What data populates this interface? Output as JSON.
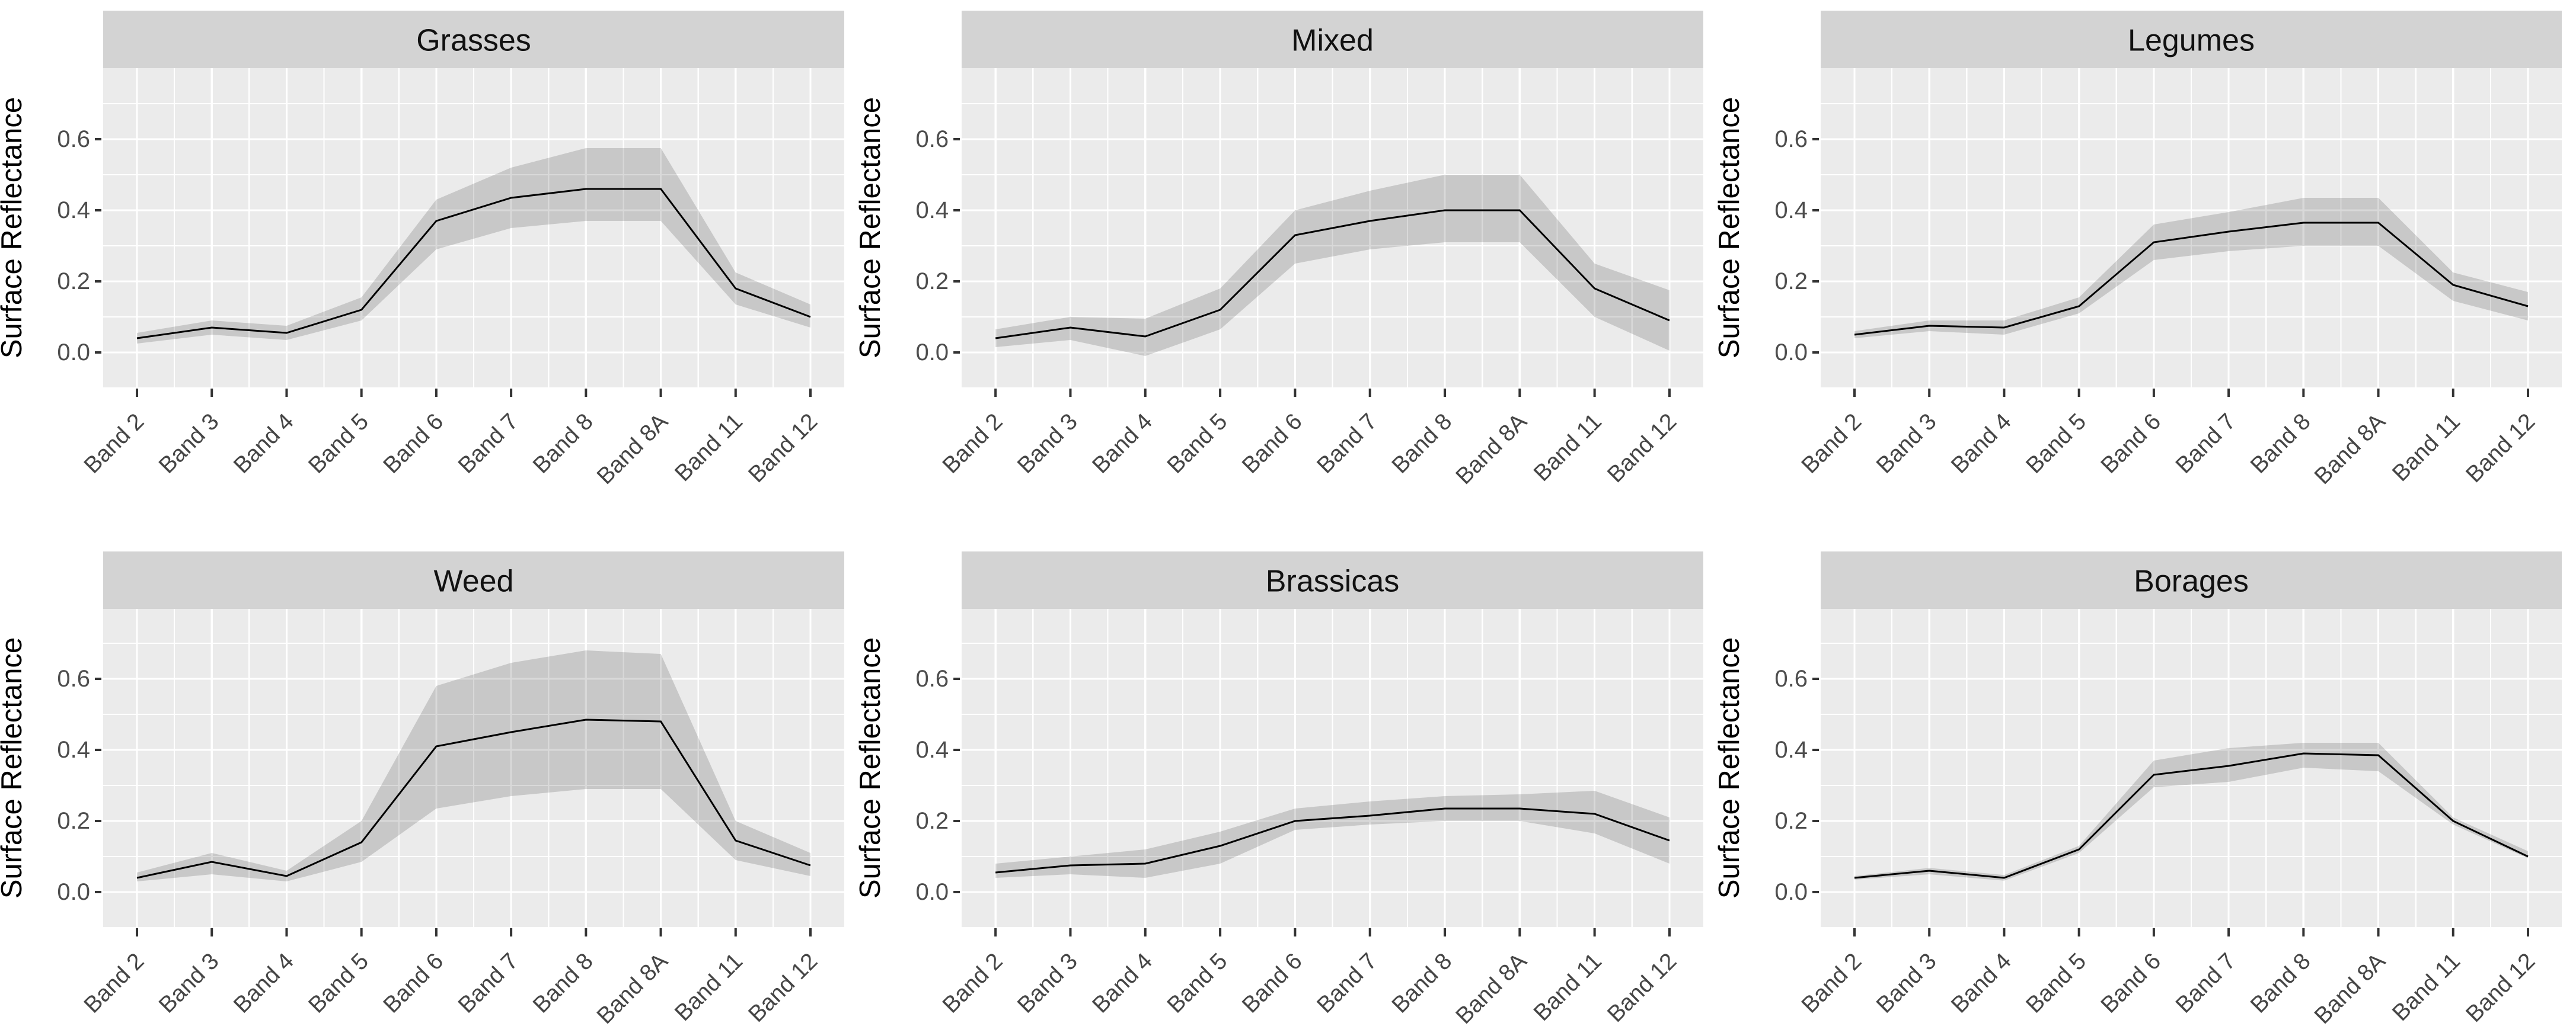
{
  "figure": {
    "description": "Faceted line charts of mean surface reflectance per satellite band with shaded variability ribbons",
    "facet_titles": [
      "Grasses",
      "Mixed",
      "Legumes",
      "Weed",
      "Brassicas",
      "Borages"
    ]
  },
  "layout_colors": {
    "background": "#FFFFFF",
    "panel_bg": "#EBEBEB",
    "strip_bg": "#D3D3D3",
    "grid_color": "#FFFFFF",
    "ribbon_color": "rgba(0,0,0,0.15)",
    "line_color": "#000000",
    "axis_text_color": "#4D4D4D",
    "axis_title_color": "#000000",
    "strip_text_color": "#111111",
    "tick_mark_color": "#333333"
  },
  "chart_data": [
    {
      "type": "line",
      "title": "Grasses",
      "xlabel": "",
      "ylabel": "Surface Reflectance",
      "categories": [
        "Band 2",
        "Band 3",
        "Band 4",
        "Band 5",
        "Band 6",
        "Band 7",
        "Band 8",
        "Band 8A",
        "Band 11",
        "Band 12"
      ],
      "series": [
        {
          "name": "mean reflectance",
          "values": [
            0.04,
            0.07,
            0.055,
            0.12,
            0.37,
            0.435,
            0.46,
            0.46,
            0.18,
            0.1
          ]
        }
      ],
      "ribbon": {
        "name": "variability band",
        "lower": [
          0.025,
          0.05,
          0.035,
          0.09,
          0.29,
          0.35,
          0.37,
          0.37,
          0.135,
          0.07
        ],
        "upper": [
          0.055,
          0.09,
          0.075,
          0.155,
          0.43,
          0.52,
          0.575,
          0.575,
          0.225,
          0.135
        ]
      },
      "ytick_labels": [
        "0.0",
        "0.2",
        "0.4",
        "0.6"
      ],
      "ytick_values": [
        0.0,
        0.2,
        0.4,
        0.6
      ],
      "ylim": [
        -0.098,
        0.8
      ],
      "grid": true,
      "legend": "none"
    },
    {
      "type": "line",
      "title": "Mixed",
      "xlabel": "",
      "ylabel": "Surface Reflectance",
      "categories": [
        "Band 2",
        "Band 3",
        "Band 4",
        "Band 5",
        "Band 6",
        "Band 7",
        "Band 8",
        "Band 8A",
        "Band 11",
        "Band 12"
      ],
      "series": [
        {
          "name": "mean reflectance",
          "values": [
            0.04,
            0.07,
            0.045,
            0.12,
            0.33,
            0.37,
            0.4,
            0.4,
            0.18,
            0.09
          ]
        }
      ],
      "ribbon": {
        "name": "variability band",
        "lower": [
          0.015,
          0.035,
          -0.01,
          0.065,
          0.25,
          0.29,
          0.31,
          0.31,
          0.1,
          0.005
        ],
        "upper": [
          0.065,
          0.1,
          0.095,
          0.18,
          0.4,
          0.455,
          0.5,
          0.5,
          0.25,
          0.175
        ]
      },
      "ytick_labels": [
        "0.0",
        "0.2",
        "0.4",
        "0.6"
      ],
      "ytick_values": [
        0.0,
        0.2,
        0.4,
        0.6
      ],
      "ylim": [
        -0.098,
        0.8
      ],
      "grid": true,
      "legend": "none"
    },
    {
      "type": "line",
      "title": "Legumes",
      "xlabel": "",
      "ylabel": "Surface Reflectance",
      "categories": [
        "Band 2",
        "Band 3",
        "Band 4",
        "Band 5",
        "Band 6",
        "Band 7",
        "Band 8",
        "Band 8A",
        "Band 11",
        "Band 12"
      ],
      "series": [
        {
          "name": "mean reflectance",
          "values": [
            0.05,
            0.075,
            0.07,
            0.13,
            0.31,
            0.34,
            0.365,
            0.365,
            0.19,
            0.13
          ]
        }
      ],
      "ribbon": {
        "name": "variability band",
        "lower": [
          0.04,
          0.06,
          0.05,
          0.11,
          0.26,
          0.285,
          0.3,
          0.3,
          0.145,
          0.09
        ],
        "upper": [
          0.06,
          0.09,
          0.09,
          0.155,
          0.36,
          0.395,
          0.435,
          0.435,
          0.225,
          0.17
        ]
      },
      "ytick_labels": [
        "0.0",
        "0.2",
        "0.4",
        "0.6"
      ],
      "ytick_values": [
        0.0,
        0.2,
        0.4,
        0.6
      ],
      "ylim": [
        -0.098,
        0.8
      ],
      "grid": true,
      "legend": "none"
    },
    {
      "type": "line",
      "title": "Weed",
      "xlabel": "",
      "ylabel": "Surface Reflectance",
      "categories": [
        "Band 2",
        "Band 3",
        "Band 4",
        "Band 5",
        "Band 6",
        "Band 7",
        "Band 8",
        "Band 8A",
        "Band 11",
        "Band 12"
      ],
      "series": [
        {
          "name": "mean reflectance",
          "values": [
            0.04,
            0.085,
            0.045,
            0.14,
            0.41,
            0.45,
            0.485,
            0.48,
            0.145,
            0.075
          ]
        }
      ],
      "ribbon": {
        "name": "variability band",
        "lower": [
          0.03,
          0.05,
          0.03,
          0.085,
          0.235,
          0.27,
          0.29,
          0.29,
          0.09,
          0.045
        ],
        "upper": [
          0.055,
          0.11,
          0.06,
          0.2,
          0.58,
          0.645,
          0.68,
          0.67,
          0.2,
          0.11
        ]
      },
      "ytick_labels": [
        "0.0",
        "0.2",
        "0.4",
        "0.6"
      ],
      "ytick_values": [
        0.0,
        0.2,
        0.4,
        0.6
      ],
      "ylim": [
        -0.098,
        0.8
      ],
      "grid": true,
      "legend": "none"
    },
    {
      "type": "line",
      "title": "Brassicas",
      "xlabel": "",
      "ylabel": "Surface Reflectance",
      "categories": [
        "Band 2",
        "Band 3",
        "Band 4",
        "Band 5",
        "Band 6",
        "Band 7",
        "Band 8",
        "Band 8A",
        "Band 11",
        "Band 12"
      ],
      "series": [
        {
          "name": "mean reflectance",
          "values": [
            0.055,
            0.075,
            0.08,
            0.13,
            0.2,
            0.215,
            0.235,
            0.235,
            0.22,
            0.145
          ]
        }
      ],
      "ribbon": {
        "name": "variability band",
        "lower": [
          0.04,
          0.05,
          0.04,
          0.08,
          0.175,
          0.19,
          0.2,
          0.2,
          0.165,
          0.08
        ],
        "upper": [
          0.08,
          0.1,
          0.12,
          0.17,
          0.235,
          0.255,
          0.27,
          0.275,
          0.285,
          0.21
        ]
      },
      "ytick_labels": [
        "0.0",
        "0.2",
        "0.4",
        "0.6"
      ],
      "ytick_values": [
        0.0,
        0.2,
        0.4,
        0.6
      ],
      "ylim": [
        -0.098,
        0.8
      ],
      "grid": true,
      "legend": "none"
    },
    {
      "type": "line",
      "title": "Borages",
      "xlabel": "",
      "ylabel": "Surface Reflectance",
      "categories": [
        "Band 2",
        "Band 3",
        "Band 4",
        "Band 5",
        "Band 6",
        "Band 7",
        "Band 8",
        "Band 8A",
        "Band 11",
        "Band 12"
      ],
      "series": [
        {
          "name": "mean reflectance",
          "values": [
            0.04,
            0.06,
            0.04,
            0.12,
            0.33,
            0.355,
            0.39,
            0.385,
            0.2,
            0.1
          ]
        }
      ],
      "ribbon": {
        "name": "variability band",
        "lower": [
          0.035,
          0.05,
          0.032,
          0.11,
          0.295,
          0.31,
          0.35,
          0.34,
          0.19,
          0.095
        ],
        "upper": [
          0.045,
          0.068,
          0.048,
          0.13,
          0.37,
          0.405,
          0.42,
          0.42,
          0.21,
          0.115
        ]
      },
      "ytick_labels": [
        "0.0",
        "0.2",
        "0.4",
        "0.6"
      ],
      "ytick_values": [
        0.0,
        0.2,
        0.4,
        0.6
      ],
      "ylim": [
        -0.098,
        0.8
      ],
      "grid": true,
      "legend": "none"
    }
  ]
}
